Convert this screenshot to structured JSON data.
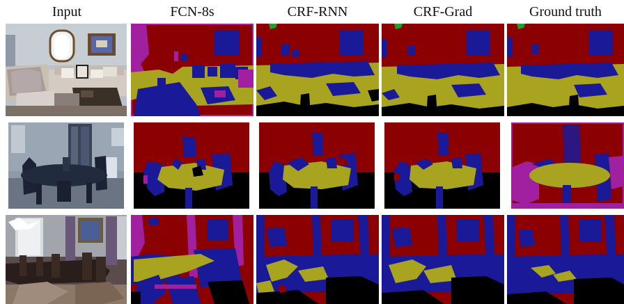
{
  "figure": {
    "columns": [
      "Input",
      "FCN-8s",
      "CRF-RNN",
      "CRF-Grad",
      "Ground truth"
    ],
    "rows": [
      {
        "scene": "living-room"
      },
      {
        "scene": "dining-room-dark"
      },
      {
        "scene": "dining-room-chandelier"
      }
    ],
    "segmentation_palette": {
      "wall": "#8b0000",
      "furniture": "#1a1a99",
      "table": "#a8a420",
      "floor": "#000000",
      "other": "#a0209f",
      "plant": "#2b9b2b"
    }
  }
}
